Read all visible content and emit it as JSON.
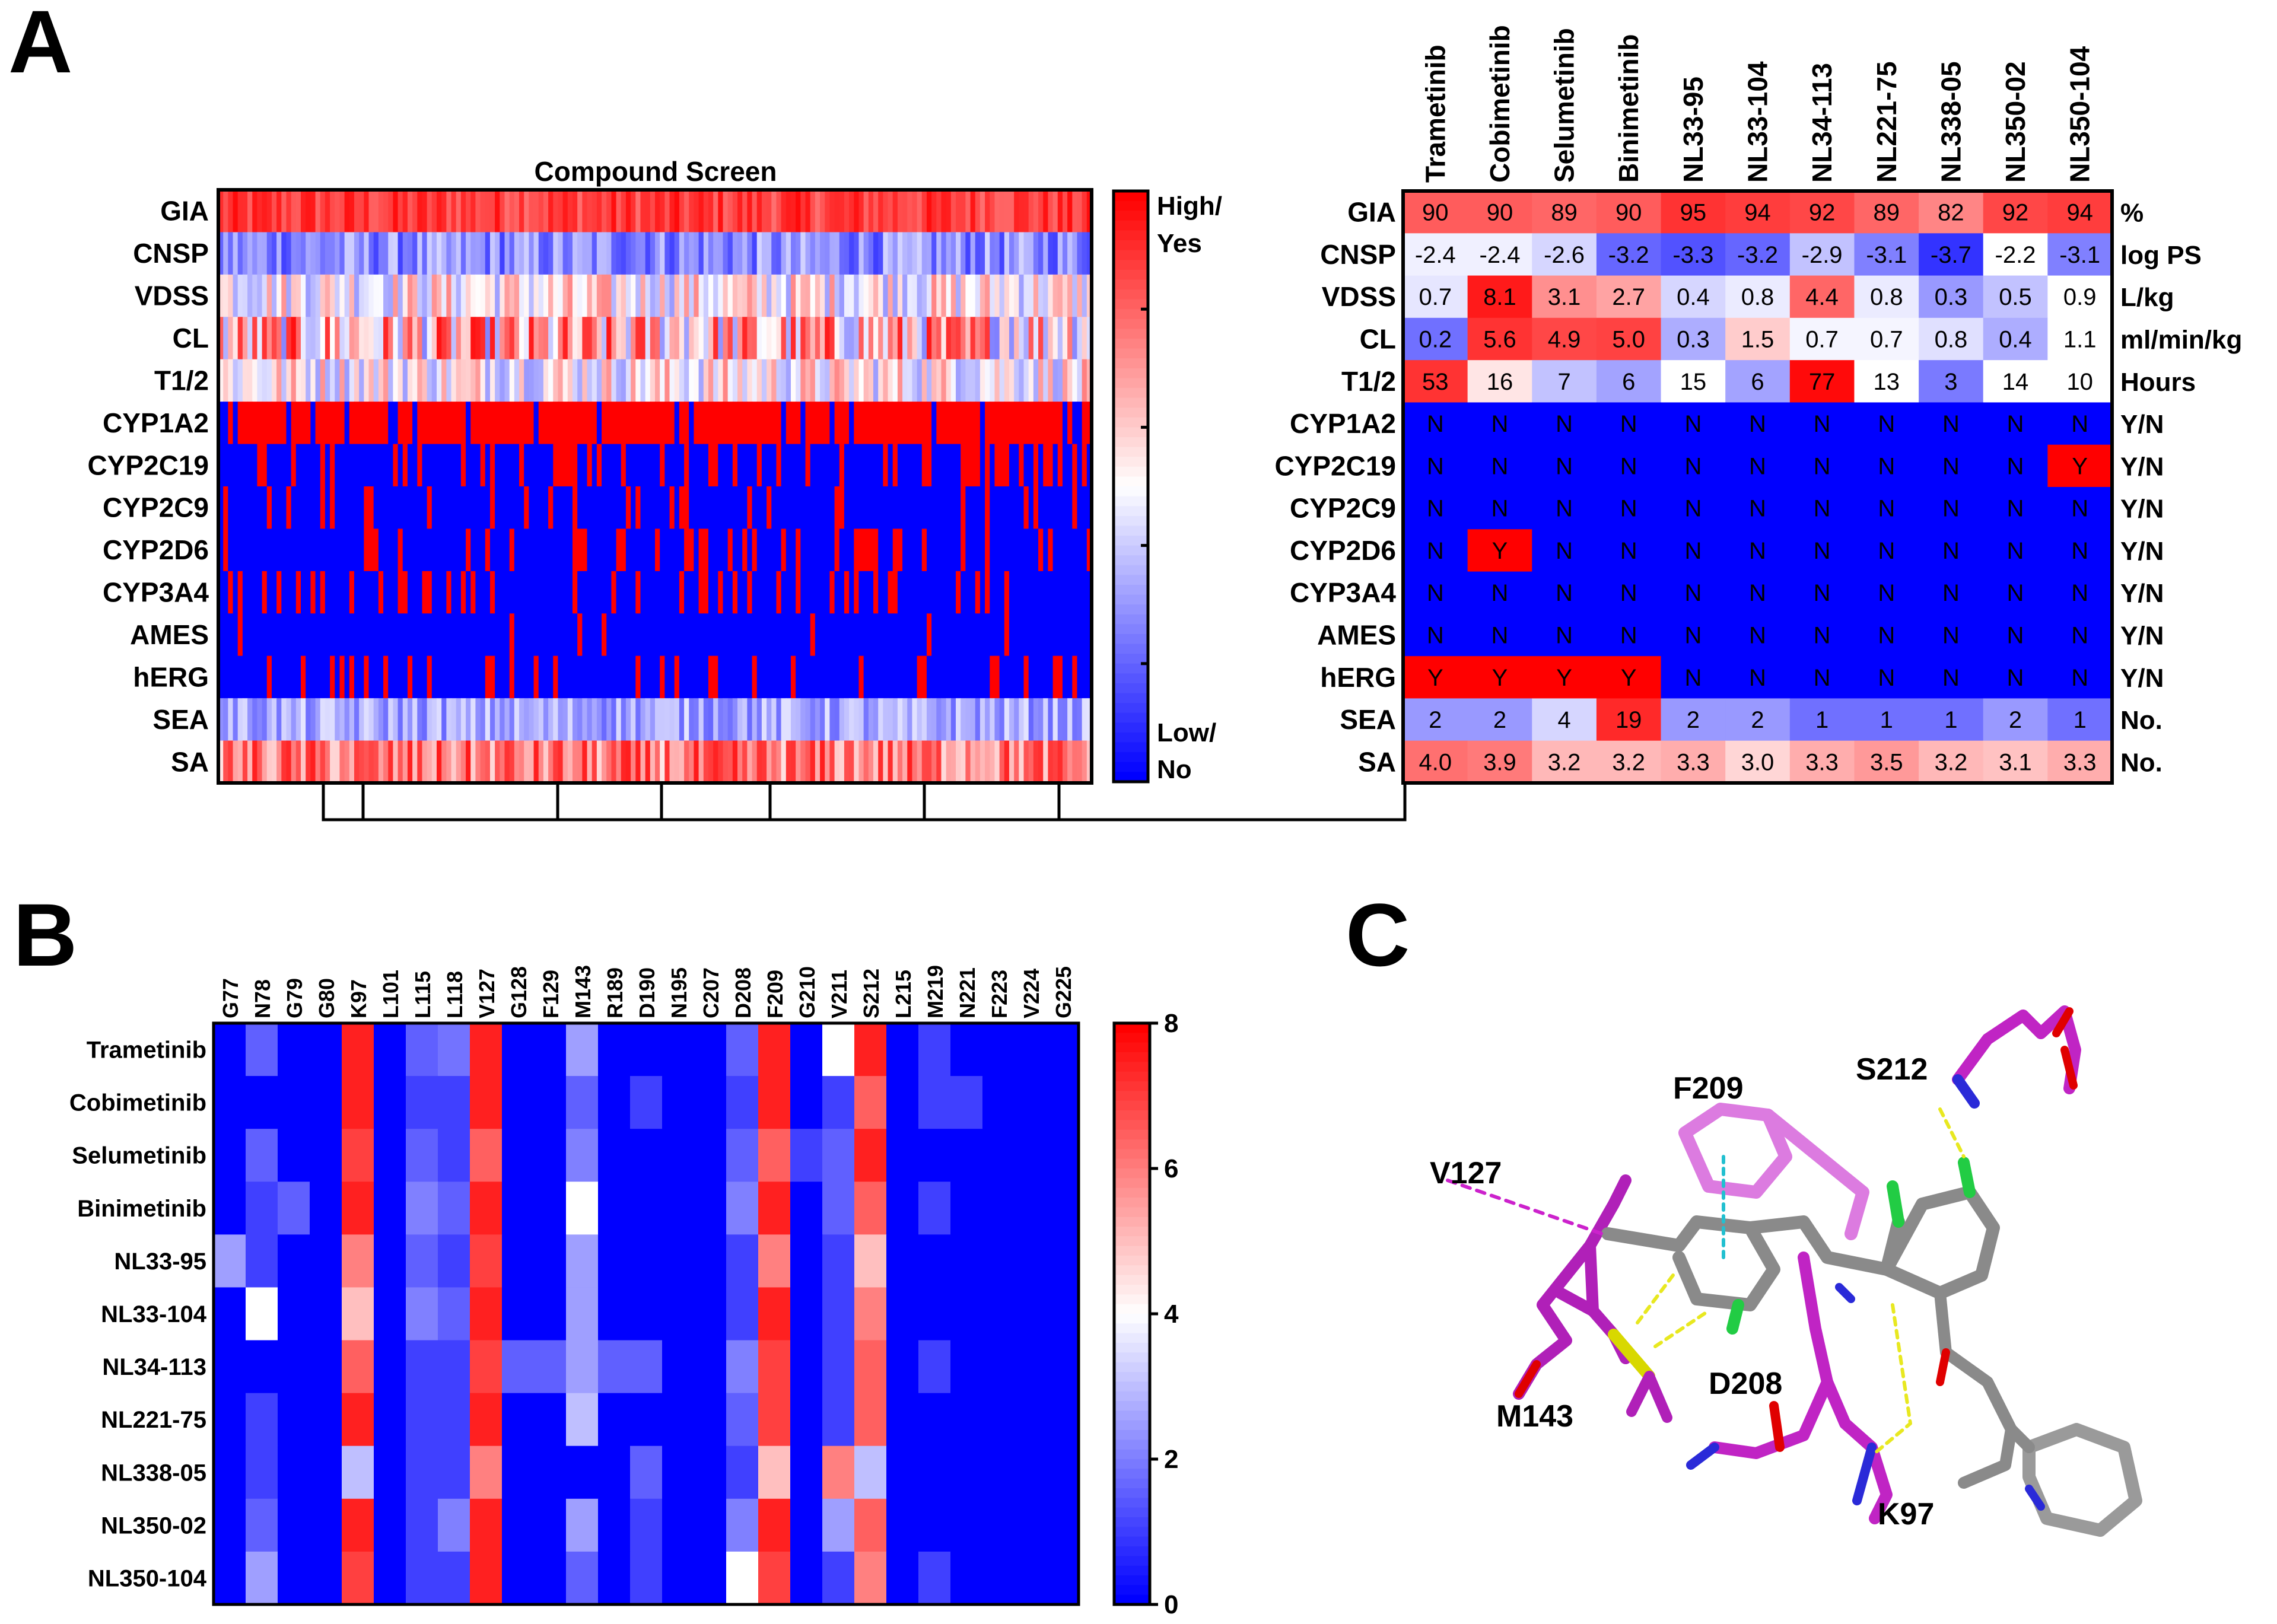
{
  "figure_labels": {
    "a": "A",
    "b": "B",
    "c": "C"
  },
  "chart_data": [
    {
      "type": "heatmap",
      "title": "Compound Screen",
      "rows": [
        "GIA",
        "CNSP",
        "VDSS",
        "CL",
        "T1/2",
        "CYP1A2",
        "CYP2C19",
        "CYP2C9",
        "CYP2D6",
        "CYP3A4",
        "AMES",
        "hERG",
        "SEA",
        "SA"
      ],
      "n_compounds": 180,
      "colorbar": {
        "high_label": "High/ Yes",
        "low_label": "Low/ No",
        "colors": [
          "#0000ff",
          "#ffffff",
          "#ff0000"
        ]
      }
    },
    {
      "type": "table",
      "columns": [
        "Trametinib",
        "Cobimetinib",
        "Selumetinib",
        "Binimetinib",
        "NL33-95",
        "NL33-104",
        "NL34-113",
        "NL221-75",
        "NL338-05",
        "NL350-02",
        "NL350-104"
      ],
      "rows": [
        {
          "label": "GIA",
          "unit": "%",
          "values": [
            "90",
            "90",
            "89",
            "90",
            "95",
            "94",
            "92",
            "89",
            "82",
            "92",
            "94"
          ],
          "levels": [
            0.82,
            0.82,
            0.8,
            0.82,
            0.9,
            0.88,
            0.86,
            0.8,
            0.74,
            0.86,
            0.88
          ]
        },
        {
          "label": "CNSP",
          "unit": "log PS",
          "values": [
            "-2.4",
            "-2.4",
            "-2.6",
            "-3.2",
            "-3.3",
            "-3.2",
            "-2.9",
            "-3.1",
            "-3.7",
            "-2.2",
            "-3.1"
          ],
          "levels": [
            0.47,
            0.47,
            0.42,
            0.2,
            0.16,
            0.2,
            0.38,
            0.25,
            0.1,
            0.5,
            0.25
          ]
        },
        {
          "label": "VDSS",
          "unit": "L/kg",
          "values": [
            "0.7",
            "8.1",
            "3.1",
            "2.7",
            "0.4",
            "0.8",
            "4.4",
            "0.8",
            "0.3",
            "0.5",
            "0.9"
          ],
          "levels": [
            0.45,
            0.95,
            0.72,
            0.68,
            0.42,
            0.46,
            0.8,
            0.46,
            0.3,
            0.38,
            0.5
          ]
        },
        {
          "label": "CL",
          "unit": "ml/min/kg",
          "values": [
            "0.2",
            "5.6",
            "4.9",
            "5.0",
            "0.3",
            "1.5",
            "0.7",
            "0.7",
            "0.8",
            "0.4",
            "1.1"
          ],
          "levels": [
            0.22,
            0.9,
            0.86,
            0.87,
            0.34,
            0.6,
            0.48,
            0.48,
            0.44,
            0.34,
            0.5
          ]
        },
        {
          "label": "T1/2",
          "unit": "Hours",
          "values": [
            "53",
            "16",
            "7",
            "6",
            "15",
            "6",
            "77",
            "13",
            "3",
            "14",
            "10"
          ],
          "levels": [
            0.9,
            0.55,
            0.38,
            0.32,
            0.5,
            0.32,
            0.98,
            0.5,
            0.24,
            0.5,
            0.5
          ]
        },
        {
          "label": "CYP1A2",
          "unit": "Y/N",
          "values": [
            "N",
            "N",
            "N",
            "N",
            "N",
            "N",
            "N",
            "N",
            "N",
            "N",
            "N"
          ],
          "levels": [
            0,
            0,
            0,
            0,
            0,
            0,
            0,
            0,
            0,
            0,
            0
          ]
        },
        {
          "label": "CYP2C19",
          "unit": "Y/N",
          "values": [
            "N",
            "N",
            "N",
            "N",
            "N",
            "N",
            "N",
            "N",
            "N",
            "N",
            "Y"
          ],
          "levels": [
            0,
            0,
            0,
            0,
            0,
            0,
            0,
            0,
            0,
            0,
            1
          ]
        },
        {
          "label": "CYP2C9",
          "unit": "Y/N",
          "values": [
            "N",
            "N",
            "N",
            "N",
            "N",
            "N",
            "N",
            "N",
            "N",
            "N",
            "N"
          ],
          "levels": [
            0,
            0,
            0,
            0,
            0,
            0,
            0,
            0,
            0,
            0,
            0
          ]
        },
        {
          "label": "CYP2D6",
          "unit": "Y/N",
          "values": [
            "N",
            "Y",
            "N",
            "N",
            "N",
            "N",
            "N",
            "N",
            "N",
            "N",
            "N"
          ],
          "levels": [
            0,
            1,
            0,
            0,
            0,
            0,
            0,
            0,
            0,
            0,
            0
          ]
        },
        {
          "label": "CYP3A4",
          "unit": "Y/N",
          "values": [
            "N",
            "N",
            "N",
            "N",
            "N",
            "N",
            "N",
            "N",
            "N",
            "N",
            "N"
          ],
          "levels": [
            0,
            0,
            0,
            0,
            0,
            0,
            0,
            0,
            0,
            0,
            0
          ]
        },
        {
          "label": "AMES",
          "unit": "Y/N",
          "values": [
            "N",
            "N",
            "N",
            "N",
            "N",
            "N",
            "N",
            "N",
            "N",
            "N",
            "N"
          ],
          "levels": [
            0,
            0,
            0,
            0,
            0,
            0,
            0,
            0,
            0,
            0,
            0
          ]
        },
        {
          "label": "hERG",
          "unit": "Y/N",
          "values": [
            "Y",
            "Y",
            "Y",
            "Y",
            "N",
            "N",
            "N",
            "N",
            "N",
            "N",
            "N"
          ],
          "levels": [
            1,
            1,
            1,
            1,
            0,
            0,
            0,
            0,
            0,
            0,
            0
          ]
        },
        {
          "label": "SEA",
          "unit": "No.",
          "values": [
            "2",
            "2",
            "4",
            "19",
            "2",
            "2",
            "1",
            "1",
            "1",
            "2",
            "1"
          ],
          "levels": [
            0.3,
            0.3,
            0.42,
            0.92,
            0.3,
            0.3,
            0.22,
            0.22,
            0.22,
            0.3,
            0.22
          ]
        },
        {
          "label": "SA",
          "unit": "No.",
          "values": [
            "4.0",
            "3.9",
            "3.2",
            "3.2",
            "3.3",
            "3.0",
            "3.3",
            "3.5",
            "3.2",
            "3.1",
            "3.3"
          ],
          "levels": [
            0.78,
            0.76,
            0.64,
            0.64,
            0.66,
            0.58,
            0.66,
            0.7,
            0.64,
            0.62,
            0.66
          ]
        }
      ]
    },
    {
      "type": "heatmap",
      "columns": [
        "G77",
        "N78",
        "G79",
        "G80",
        "K97",
        "L101",
        "L115",
        "L118",
        "V127",
        "G128",
        "F129",
        "M143",
        "R189",
        "D190",
        "N195",
        "C207",
        "D208",
        "F209",
        "G210",
        "V211",
        "S212",
        "L215",
        "M219",
        "N221",
        "F223",
        "V224",
        "G225"
      ],
      "rows": [
        "Trametinib",
        "Cobimetinib",
        "Selumetinib",
        "Binimetinib",
        "NL33-95",
        "NL33-104",
        "NL34-113",
        "NL221-75",
        "NL338-05",
        "NL350-02",
        "NL350-104"
      ],
      "values": [
        [
          0,
          1.5,
          0,
          0,
          7.5,
          0,
          1.5,
          1.8,
          7.5,
          0,
          0,
          2.5,
          0,
          0,
          0,
          0,
          1.5,
          7.5,
          0,
          4,
          7.5,
          0,
          1,
          0,
          0,
          0,
          0
        ],
        [
          0,
          0,
          0,
          0,
          7.5,
          0,
          1,
          1,
          7.5,
          0,
          0,
          1.5,
          0,
          1,
          0,
          0,
          1,
          7.5,
          0,
          1,
          6.5,
          0,
          1,
          1,
          0,
          0,
          0
        ],
        [
          0,
          1.5,
          0,
          0,
          7,
          0,
          1.5,
          1,
          6.5,
          0,
          0,
          2,
          0,
          0,
          0,
          0,
          1.5,
          6.5,
          1,
          1.5,
          7.5,
          0,
          0,
          0,
          0,
          0,
          0
        ],
        [
          0,
          1,
          1.5,
          0,
          7.5,
          0,
          2,
          1.5,
          7.5,
          0,
          0,
          4,
          0,
          0,
          0,
          0,
          2,
          7.5,
          0,
          1.5,
          6.5,
          0,
          1,
          0,
          0,
          0,
          0
        ],
        [
          2.5,
          1,
          0,
          0,
          6,
          0,
          1.5,
          1,
          7,
          0,
          0,
          2.5,
          0,
          0,
          0,
          0,
          1,
          6,
          0,
          1,
          5,
          0,
          0,
          0,
          0,
          0,
          0
        ],
        [
          0,
          4,
          0,
          0,
          5,
          0,
          2,
          1.5,
          7.5,
          0,
          0,
          2.5,
          0,
          0,
          0,
          0,
          1,
          7.5,
          0,
          1,
          6,
          0,
          0,
          0,
          0,
          0,
          0
        ],
        [
          0,
          0,
          0,
          0,
          6.5,
          0,
          1,
          1,
          7,
          1.5,
          1.5,
          2.5,
          1.5,
          1.5,
          0,
          0,
          2,
          7,
          0,
          1,
          6.5,
          0,
          1,
          0,
          0,
          0,
          0
        ],
        [
          0,
          1,
          0,
          0,
          7.5,
          0,
          1,
          1,
          7.5,
          0,
          0,
          3,
          0,
          0,
          0,
          0,
          1.5,
          7,
          0,
          1,
          6.5,
          0,
          0,
          0,
          0,
          0,
          0
        ],
        [
          0,
          1,
          0,
          0,
          3,
          0,
          1,
          1,
          6,
          0,
          0,
          0,
          0,
          1.5,
          0,
          0,
          1,
          5,
          0,
          6,
          3,
          0,
          0,
          0,
          0,
          0,
          0
        ],
        [
          0,
          1.5,
          0,
          0,
          7.5,
          0,
          1,
          2,
          7.5,
          0,
          0,
          2.5,
          0,
          1,
          0,
          0,
          2,
          7.5,
          0,
          2.5,
          6.5,
          0,
          0,
          0,
          0,
          0,
          0
        ],
        [
          0,
          2.5,
          0,
          0,
          7,
          0,
          1,
          1,
          7.5,
          0,
          0,
          1.5,
          0,
          1,
          0,
          0,
          4,
          7,
          0,
          1,
          6,
          0,
          1,
          0,
          0,
          0,
          0
        ]
      ],
      "colorbar": {
        "ticks": [
          "0",
          "2",
          "4",
          "6",
          "8"
        ],
        "range": [
          0,
          8
        ]
      }
    }
  ],
  "residues_3d": {
    "s212": "S212",
    "f209": "F209",
    "v127": "V127",
    "d208": "D208",
    "m143": "M143",
    "k97": "K97"
  },
  "colors": {
    "red": "#ff0000",
    "blue": "#0000ff",
    "magenta": "#cc22cc",
    "grey": "#8a8a8a"
  }
}
